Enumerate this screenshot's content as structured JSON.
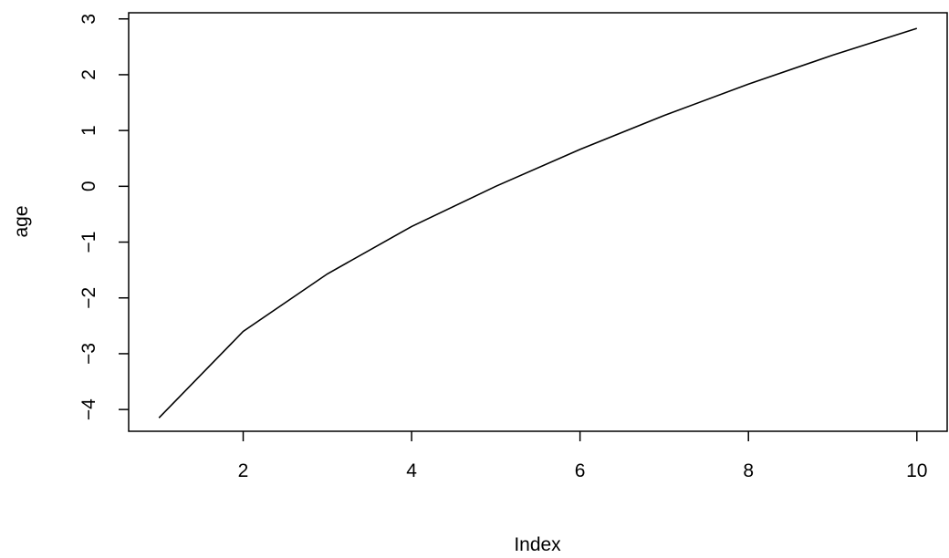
{
  "chart_data": {
    "type": "line",
    "title": "",
    "xlabel": "Index",
    "ylabel": "age",
    "xlim": [
      0.64,
      10.36
    ],
    "ylim": [
      -4.39,
      3.11
    ],
    "x_ticks": [
      2,
      4,
      6,
      8,
      10
    ],
    "y_ticks": [
      -4,
      -3,
      -2,
      -1,
      0,
      1,
      2,
      3
    ],
    "x_tick_labels": [
      "2",
      "4",
      "6",
      "8",
      "10"
    ],
    "y_tick_labels": [
      "−4",
      "−3",
      "−2",
      "−1",
      "0",
      "1",
      "2",
      "3"
    ],
    "grid": false,
    "legend": "none",
    "series": [
      {
        "x": [
          1,
          2,
          3,
          4,
          5,
          6,
          7,
          8,
          9,
          10
        ],
        "values": [
          -4.15,
          -2.6,
          -1.57,
          -0.72,
          0.0,
          0.66,
          1.27,
          1.83,
          2.35,
          2.83
        ]
      }
    ]
  },
  "colors": {
    "line": "#000000",
    "axis": "#000000",
    "background": "#ffffff"
  }
}
